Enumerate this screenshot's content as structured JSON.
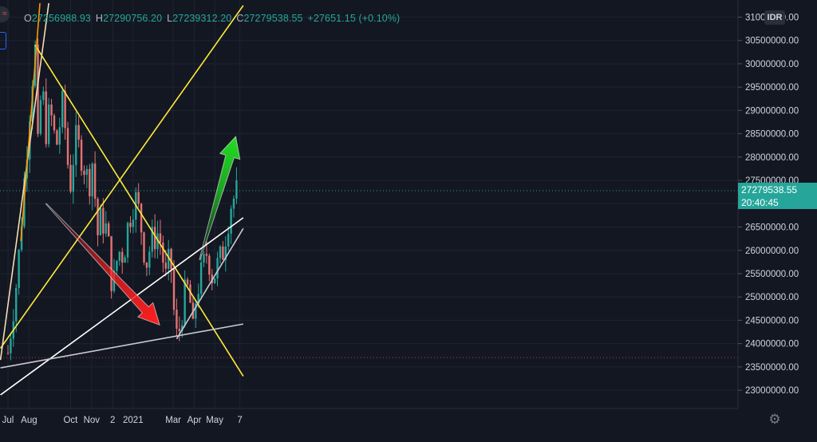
{
  "ohlc": {
    "open_label": "O",
    "open": "27256988.93",
    "high_label": "H",
    "high": "27290756.20",
    "low_label": "L",
    "low": "27239312.20",
    "close_label": "C",
    "close": "27279538.55",
    "change": "+27651.15 (+0.10%)"
  },
  "symbol_icon": "exchange-icon",
  "currency_badge": "IDR",
  "price_tag": {
    "price": "27279538.55",
    "countdown": "20:40:45"
  },
  "settings_icon": "gear-icon",
  "colors": {
    "background": "#131722",
    "up": "#26a69a",
    "down": "#ef5350",
    "candle_up": "#26a69a",
    "candle_down": "#e57373",
    "trendline_yellow": "#ffeb3b",
    "trendline_white": "#ffffff",
    "trendline_gray": "#c8cad2",
    "trendline_orange": "#ff9800",
    "trendline_tan": "#f5deb3",
    "arrow_red": "#ff1f1f",
    "arrow_green": "#22dd22",
    "grid": "#1f2330",
    "axis_text": "#d1d4dc"
  },
  "chart_data": {
    "type": "candlestick",
    "y_axis": {
      "labels": [
        "31000000.00",
        "30500000.00",
        "30000000.00",
        "29500000.00",
        "29000000.00",
        "28500000.00",
        "28000000.00",
        "27500000.00",
        "27000000.00",
        "26500000.00",
        "26000000.00",
        "25500000.00",
        "25000000.00",
        "24500000.00",
        "24000000.00",
        "23500000.00",
        "23000000.00"
      ],
      "values": [
        31000000,
        30500000,
        30000000,
        29500000,
        29000000,
        28500000,
        28000000,
        27500000,
        27000000,
        26500000,
        26000000,
        25500000,
        25000000,
        24500000,
        24000000,
        23500000,
        23000000
      ],
      "range": [
        22800000,
        31200000
      ]
    },
    "x_axis": {
      "labels": [
        "Jul",
        "Aug",
        "Oct",
        "Nov",
        "2",
        "2021",
        "Mar",
        "Apr",
        "May",
        "7"
      ],
      "dates": [
        "2020-07-01",
        "2020-08-01",
        "2020-10-01",
        "2020-11-01",
        "2020-12-02",
        "2021-01-01",
        "2021-03-01",
        "2021-04-01",
        "2021-05-01",
        "2021-06-07"
      ]
    },
    "last_price": 27279538.55,
    "reference_line": 23700000,
    "anchor_points": [
      {
        "date": "2020-07-01",
        "price": 23800000
      },
      {
        "date": "2020-07-15",
        "price": 25500000
      },
      {
        "date": "2020-07-25",
        "price": 27500000
      },
      {
        "date": "2020-08-05",
        "price": 29600000
      },
      {
        "date": "2020-08-10",
        "price": 30300000
      },
      {
        "date": "2020-08-13",
        "price": 27900000
      },
      {
        "date": "2020-08-20",
        "price": 29700000
      },
      {
        "date": "2020-08-25",
        "price": 28500000
      },
      {
        "date": "2020-09-01",
        "price": 29000000
      },
      {
        "date": "2020-09-10",
        "price": 28200000
      },
      {
        "date": "2020-09-20",
        "price": 29200000
      },
      {
        "date": "2020-09-30",
        "price": 27300000
      },
      {
        "date": "2020-10-08",
        "price": 28400000
      },
      {
        "date": "2020-10-18",
        "price": 28000000
      },
      {
        "date": "2020-10-28",
        "price": 27400000
      },
      {
        "date": "2020-11-04",
        "price": 28100000
      },
      {
        "date": "2020-11-08",
        "price": 26200000
      },
      {
        "date": "2020-11-15",
        "price": 26700000
      },
      {
        "date": "2020-11-24",
        "price": 26400000
      },
      {
        "date": "2020-12-02",
        "price": 25100000
      },
      {
        "date": "2020-12-10",
        "price": 26000000
      },
      {
        "date": "2020-12-18",
        "price": 25900000
      },
      {
        "date": "2020-12-25",
        "price": 26600000
      },
      {
        "date": "2021-01-01",
        "price": 27000000
      },
      {
        "date": "2021-01-06",
        "price": 27100000
      },
      {
        "date": "2021-01-12",
        "price": 26600000
      },
      {
        "date": "2021-01-20",
        "price": 25700000
      },
      {
        "date": "2021-01-28",
        "price": 26200000
      },
      {
        "date": "2021-02-08",
        "price": 26400000
      },
      {
        "date": "2021-02-18",
        "price": 25400000
      },
      {
        "date": "2021-02-25",
        "price": 25900000
      },
      {
        "date": "2021-03-01",
        "price": 24900000
      },
      {
        "date": "2021-03-05",
        "price": 24100000
      },
      {
        "date": "2021-03-10",
        "price": 24300000
      },
      {
        "date": "2021-03-17",
        "price": 25000000
      },
      {
        "date": "2021-03-24",
        "price": 25200000
      },
      {
        "date": "2021-03-30",
        "price": 24200000
      },
      {
        "date": "2021-04-04",
        "price": 25100000
      },
      {
        "date": "2021-04-12",
        "price": 25500000
      },
      {
        "date": "2021-04-20",
        "price": 26000000
      },
      {
        "date": "2021-04-28",
        "price": 25400000
      },
      {
        "date": "2021-05-06",
        "price": 25700000
      },
      {
        "date": "2021-05-12",
        "price": 25900000
      },
      {
        "date": "2021-05-20",
        "price": 26600000
      },
      {
        "date": "2021-05-25",
        "price": 27000000
      },
      {
        "date": "2021-06-04",
        "price": 27280000
      }
    ],
    "trendlines": [
      {
        "name": "yellow-descending",
        "color": "#ffeb3b",
        "from": {
          "date": "2020-08-10",
          "price": 30400000
        },
        "to": {
          "date": "2021-06-12",
          "price": 23300000
        }
      },
      {
        "name": "yellow-ascending",
        "color": "#ffeb3b",
        "from": {
          "date": "2020-06-20",
          "price": 23900000
        },
        "to": {
          "date": "2021-06-12",
          "price": 31250000
        }
      },
      {
        "name": "white-long-support",
        "color": "#ffffff",
        "from": {
          "date": "2020-06-20",
          "price": 22900000
        },
        "to": {
          "date": "2021-06-12",
          "price": 26700000
        }
      },
      {
        "name": "gray-flat-support",
        "color": "#c8cad2",
        "from": {
          "date": "2020-06-20",
          "price": 23480000
        },
        "to": {
          "date": "2021-06-12",
          "price": 24420000
        }
      },
      {
        "name": "gray-rising-support",
        "color": "#c8cad2",
        "from": {
          "date": "2021-03-06",
          "price": 24100000
        },
        "to": {
          "date": "2021-06-12",
          "price": 26470000
        }
      },
      {
        "name": "tan-early-support",
        "color": "#f5deb3",
        "from": {
          "date": "2020-06-20",
          "price": 23650000
        },
        "to": {
          "date": "2020-08-30",
          "price": 31300000
        }
      },
      {
        "name": "orange-parabolic",
        "color": "#ff9800",
        "from": {
          "date": "2020-07-20",
          "price": 26200000
        },
        "to": {
          "date": "2020-08-17",
          "price": 31300000
        }
      }
    ],
    "arrows": [
      {
        "name": "bearish-arrow",
        "color": "#ff1f1f",
        "from": {
          "date": "2020-08-26",
          "price": 27000000
        },
        "to": {
          "date": "2021-02-09",
          "price": 24400000
        }
      },
      {
        "name": "bullish-arrow",
        "color": "#22dd22",
        "from": {
          "date": "2021-04-09",
          "price": 25800000
        },
        "to": {
          "date": "2021-06-01",
          "price": 28440000
        }
      }
    ]
  }
}
